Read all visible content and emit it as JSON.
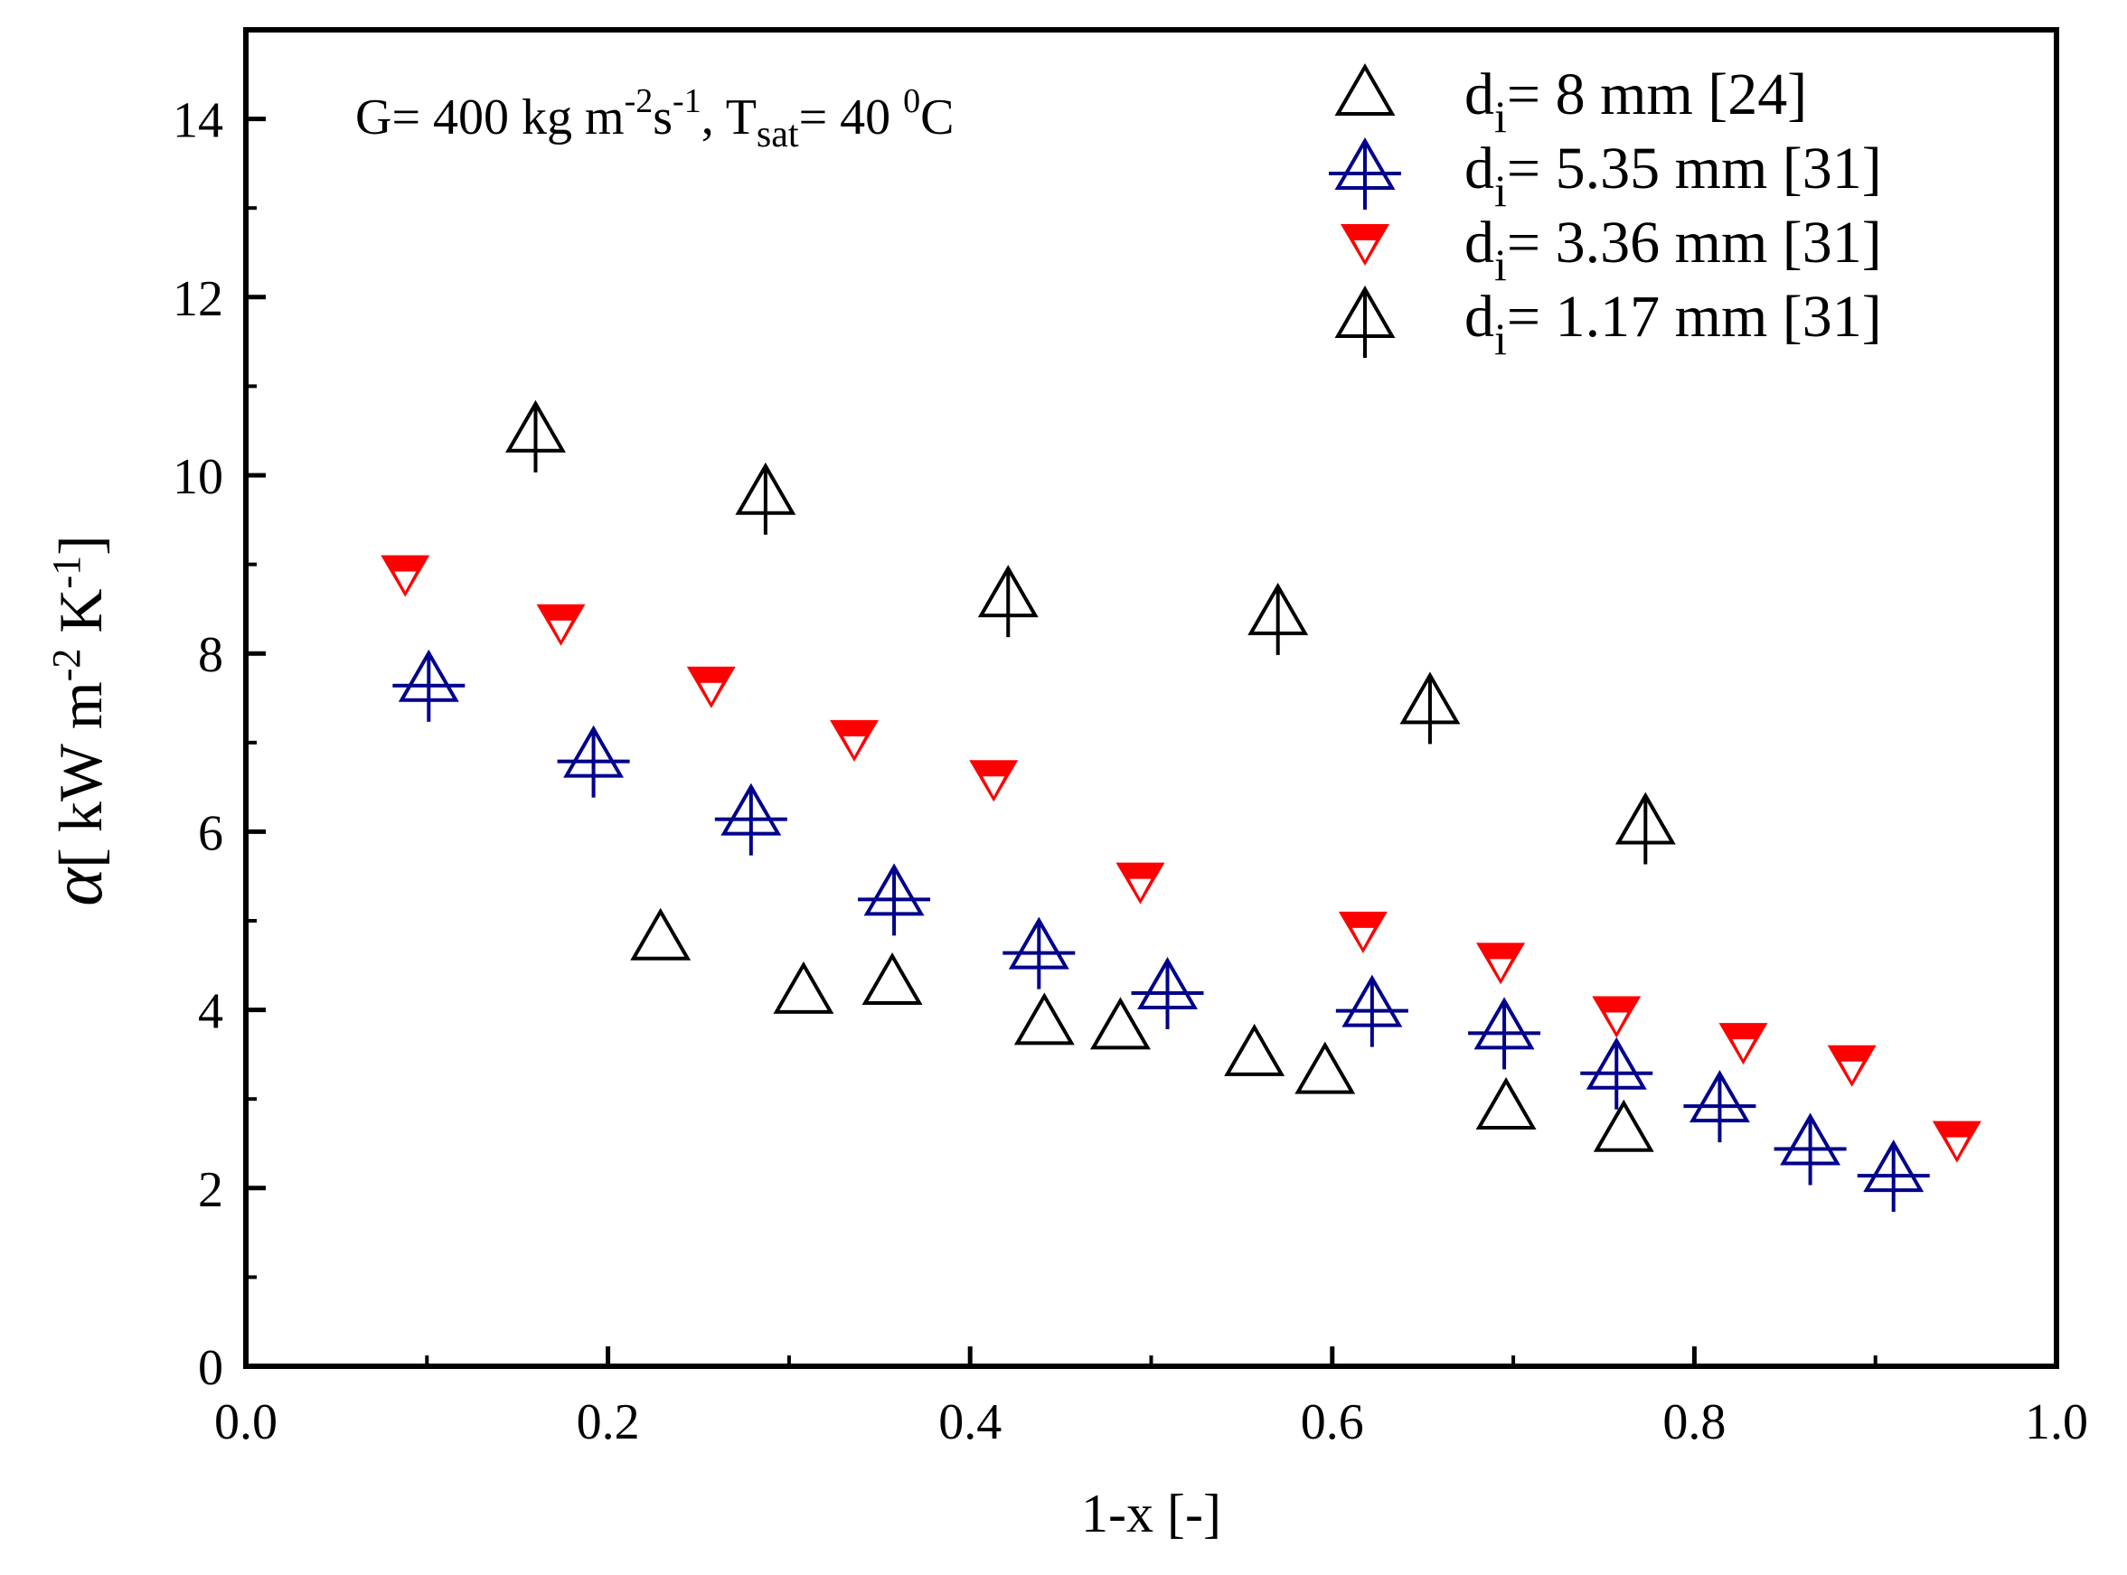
{
  "chart_data": {
    "type": "scatter",
    "xlabel": "1-x [-]",
    "ylabel": {
      "symbol": "α",
      "open": "[ kW m",
      "exp1": "-2",
      "mid": " K",
      "exp2": "-1",
      "close": "]"
    },
    "annotation": {
      "p1": "G= 400 kg m",
      "s1": "-2",
      "p2": "s",
      "s2": "-1",
      "p3": ", T",
      "sub": "sat",
      "p4": "= 40 ",
      "s3": "0",
      "p5": "C"
    },
    "xlim": [
      0.0,
      1.0
    ],
    "ylim": [
      0,
      15
    ],
    "xticks": [
      "0.0",
      "0.2",
      "0.4",
      "0.6",
      "0.8",
      "1.0"
    ],
    "yticks": [
      "0",
      "2",
      "4",
      "6",
      "8",
      "10",
      "12",
      "14"
    ],
    "series": [
      {
        "name": "8 mm [24]",
        "label_pre": "d",
        "label_sub": "i",
        "label_post": "= 8 mm [24]",
        "marker": "triangle-up",
        "color": "#000000",
        "x": [
          0.229,
          0.308,
          0.357,
          0.441,
          0.483,
          0.557,
          0.596,
          0.696,
          0.761
        ],
        "y": [
          4.8,
          4.2,
          4.3,
          3.85,
          3.8,
          3.5,
          3.3,
          2.9,
          2.65
        ]
      },
      {
        "name": "5.35 mm [31]",
        "label_pre": "d",
        "label_sub": "i",
        "label_post": "= 5.35 mm [31]",
        "marker": "triangle-up-plus",
        "color": "#00008B",
        "x": [
          0.101,
          0.192,
          0.279,
          0.358,
          0.438,
          0.509,
          0.622,
          0.695,
          0.757,
          0.814,
          0.864,
          0.91
        ],
        "y": [
          7.7,
          6.85,
          6.2,
          5.3,
          4.7,
          4.25,
          4.05,
          3.8,
          3.35,
          2.98,
          2.5,
          2.2
        ]
      },
      {
        "name": "3.36 mm [31]",
        "label_pre": "d",
        "label_sub": "i",
        "label_post": "= 3.36 mm [31]",
        "marker": "triangle-down-filled",
        "color": "#FF0000",
        "x": [
          0.088,
          0.174,
          0.257,
          0.336,
          0.413,
          0.494,
          0.617,
          0.693,
          0.757,
          0.827,
          0.887,
          0.945
        ],
        "y": [
          8.9,
          8.35,
          7.65,
          7.05,
          6.6,
          5.45,
          4.9,
          4.55,
          3.95,
          3.65,
          3.4,
          2.55
        ]
      },
      {
        "name": "1.17 mm [31]",
        "label_pre": "d",
        "label_sub": "i",
        "label_post": "= 1.17 mm [31]",
        "marker": "triangle-up-line",
        "color": "#000000",
        "x": [
          0.16,
          0.287,
          0.421,
          0.57,
          0.654,
          0.773
        ],
        "y": [
          10.5,
          9.8,
          8.65,
          8.45,
          7.45,
          6.1
        ]
      }
    ]
  }
}
